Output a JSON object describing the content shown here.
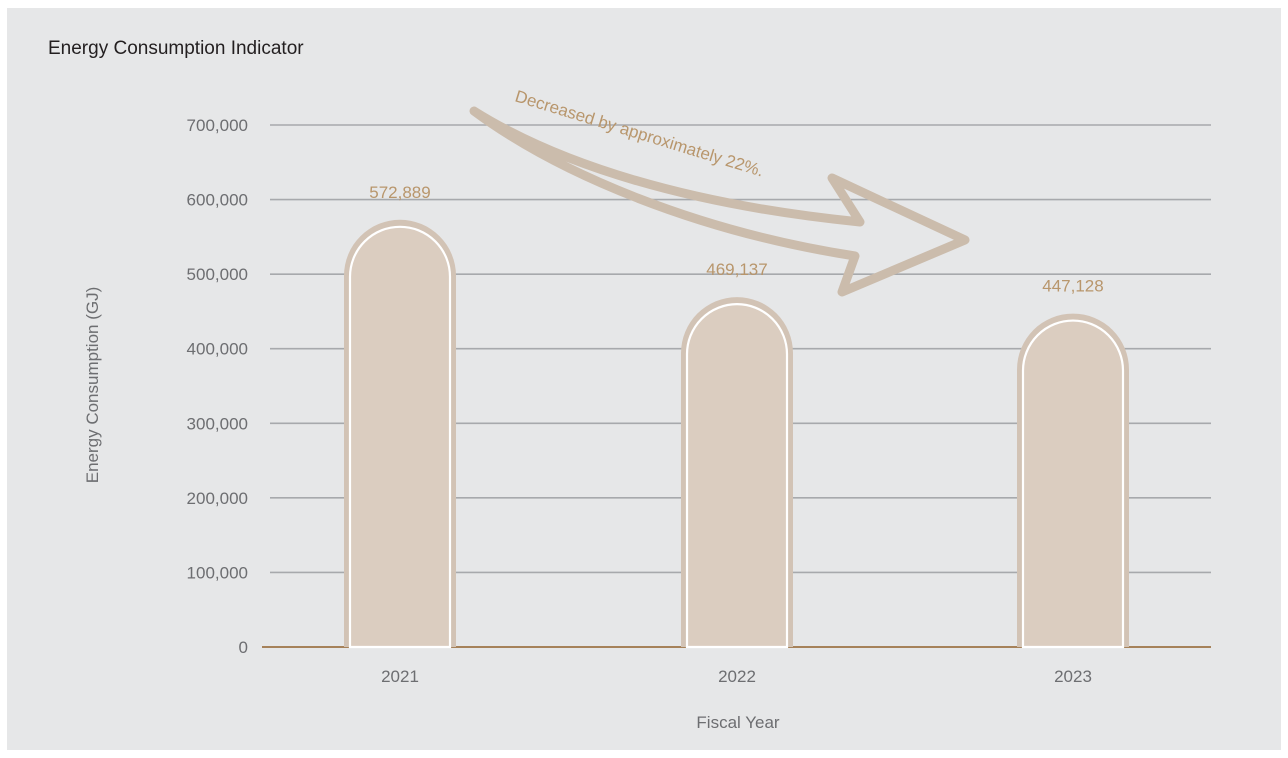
{
  "colors": {
    "background": "#e6e7e8",
    "gridline": "#a7a9ac",
    "baseline": "#a6825a",
    "bar_fill": "#dbcdc0",
    "bar_outline": "#d2c3b5",
    "data_label": "#b8966c",
    "arrow": "#cbbcac",
    "text": "#231f20",
    "tick_text": "#6d6e71"
  },
  "chart_data": {
    "type": "bar",
    "title": "Energy Consumption Indicator",
    "xlabel": "Fiscal Year",
    "ylabel": "Energy Consumption (GJ)",
    "categories": [
      "2021",
      "2022",
      "2023"
    ],
    "values": [
      572889,
      469137,
      447128
    ],
    "data_labels": [
      "572,889",
      "469,137",
      "447,128"
    ],
    "ylim": [
      0,
      700000
    ],
    "yticks": [
      0,
      100000,
      200000,
      300000,
      400000,
      500000,
      600000,
      700000
    ],
    "ytick_labels": [
      "0",
      "100,000",
      "200,000",
      "300,000",
      "400,000",
      "500,000",
      "600,000",
      "700,000"
    ],
    "grid": true,
    "annotation": "Decreased by approximately 22%."
  }
}
